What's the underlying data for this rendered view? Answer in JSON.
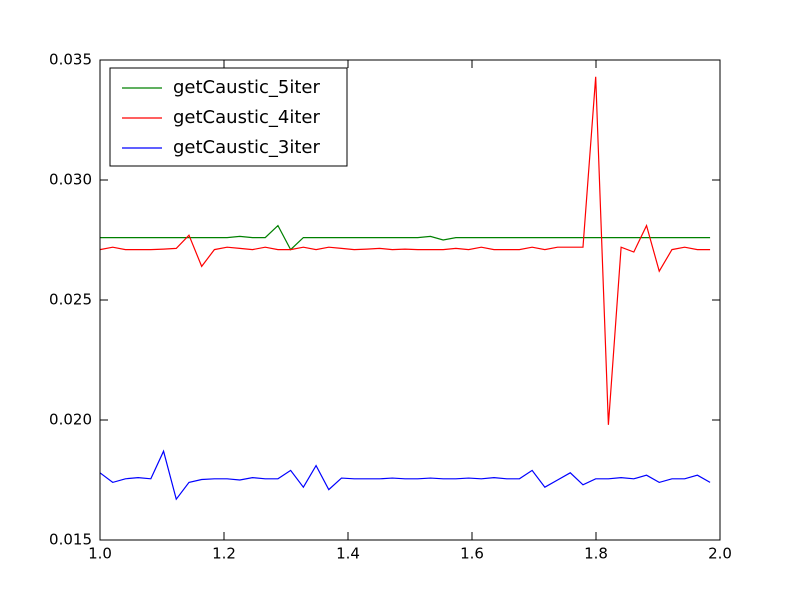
{
  "chart_data": {
    "type": "line",
    "x": [
      1.0,
      1.0205,
      1.041,
      1.0615,
      1.082,
      1.1025,
      1.123,
      1.1435,
      1.164,
      1.1845,
      1.205,
      1.2255,
      1.246,
      1.2665,
      1.287,
      1.3075,
      1.328,
      1.3485,
      1.369,
      1.3895,
      1.41,
      1.4305,
      1.451,
      1.4715,
      1.492,
      1.5125,
      1.533,
      1.5535,
      1.574,
      1.5945,
      1.615,
      1.6355,
      1.656,
      1.6765,
      1.697,
      1.7175,
      1.738,
      1.7585,
      1.779,
      1.7995,
      1.82,
      1.8405,
      1.861,
      1.8815,
      1.902,
      1.9225,
      1.943,
      1.9635,
      1.984
    ],
    "series": [
      {
        "name": "getCaustic_5iter",
        "color": "#008000",
        "values": [
          0.0276,
          0.0276,
          0.0276,
          0.0276,
          0.0276,
          0.0276,
          0.0276,
          0.0276,
          0.0276,
          0.0276,
          0.0276,
          0.02765,
          0.0276,
          0.0276,
          0.0281,
          0.0271,
          0.0276,
          0.0276,
          0.0276,
          0.0276,
          0.0276,
          0.0276,
          0.0276,
          0.0276,
          0.0276,
          0.0276,
          0.02765,
          0.0275,
          0.0276,
          0.0276,
          0.0276,
          0.0276,
          0.0276,
          0.0276,
          0.0276,
          0.0276,
          0.0276,
          0.0276,
          0.0276,
          0.0276,
          0.0276,
          0.0276,
          0.0276,
          0.0276,
          0.0276,
          0.0276,
          0.0276,
          0.0276,
          0.0276
        ]
      },
      {
        "name": "getCaustic_4iter",
        "color": "#ff0000",
        "values": [
          0.0271,
          0.0272,
          0.0271,
          0.0271,
          0.0271,
          0.02712,
          0.02715,
          0.0277,
          0.0264,
          0.0271,
          0.0272,
          0.02715,
          0.0271,
          0.0272,
          0.0271,
          0.0271,
          0.0272,
          0.0271,
          0.0272,
          0.02715,
          0.0271,
          0.02712,
          0.02715,
          0.0271,
          0.02712,
          0.0271,
          0.0271,
          0.0271,
          0.02715,
          0.0271,
          0.0272,
          0.0271,
          0.0271,
          0.0271,
          0.0272,
          0.0271,
          0.0272,
          0.0272,
          0.0272,
          0.0343,
          0.0198,
          0.0272,
          0.027,
          0.0281,
          0.0262,
          0.0271,
          0.0272,
          0.0271,
          0.0271
        ]
      },
      {
        "name": "getCaustic_3iter",
        "color": "#0000ff",
        "values": [
          0.0178,
          0.0174,
          0.01755,
          0.0176,
          0.01755,
          0.0187,
          0.0167,
          0.0174,
          0.01752,
          0.01755,
          0.01755,
          0.0175,
          0.0176,
          0.01755,
          0.01755,
          0.0179,
          0.0172,
          0.0181,
          0.0171,
          0.01758,
          0.01755,
          0.01755,
          0.01755,
          0.01758,
          0.01755,
          0.01755,
          0.01758,
          0.01755,
          0.01755,
          0.01758,
          0.01755,
          0.0176,
          0.01755,
          0.01755,
          0.0179,
          0.0172,
          0.0175,
          0.0178,
          0.0173,
          0.01755,
          0.01755,
          0.0176,
          0.01755,
          0.0177,
          0.0174,
          0.01755,
          0.01755,
          0.0177,
          0.0174
        ]
      }
    ],
    "xlim": [
      1.0,
      2.0
    ],
    "xticks": [
      {
        "value": 1.0,
        "label": "1.0"
      },
      1.2,
      1.4,
      1.6,
      1.8,
      {
        "value": 2.0,
        "label": "2.0"
      }
    ],
    "ylim": [
      0.015,
      0.035
    ],
    "yticks": [
      0.015,
      {
        "value": 0.02,
        "label": "0.020"
      },
      0.025,
      {
        "value": 0.03,
        "label": "0.030"
      },
      0.035
    ],
    "grid": false,
    "legend": "upper-left"
  }
}
